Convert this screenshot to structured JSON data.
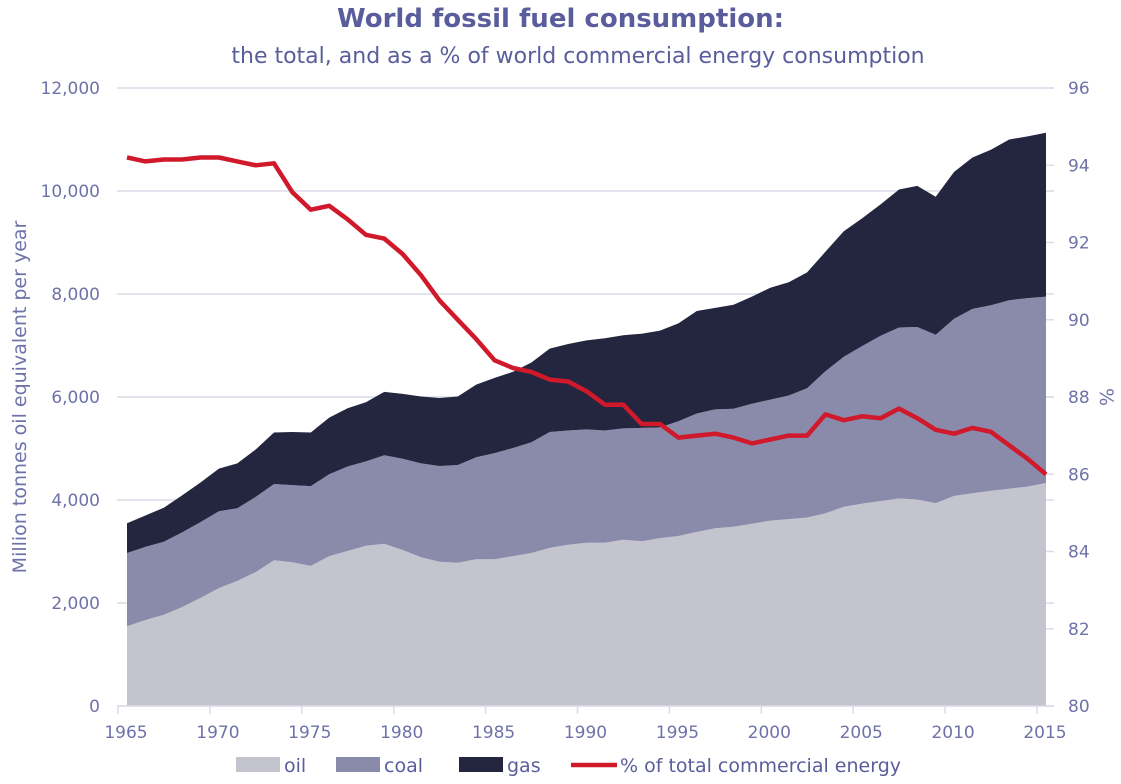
{
  "chart_data": {
    "type": "area",
    "stacked": true,
    "title": "World fossil fuel consumption:",
    "subtitle": "the total, and as a % of world commercial energy consumption",
    "xlabel": "",
    "ylabel": "Million tonnes oil equivalent per year",
    "y2label": "%",
    "ylim": [
      0,
      12000
    ],
    "y2lim": [
      80,
      96
    ],
    "x_ticks": [
      "1965",
      "1970",
      "1975",
      "1980",
      "1985",
      "1990",
      "1995",
      "2000",
      "2005",
      "2010",
      "2015"
    ],
    "y_ticks": [
      "0",
      "2,000",
      "4,000",
      "6,000",
      "8,000",
      "10,000",
      "12,000"
    ],
    "y2_ticks": [
      "80",
      "82",
      "84",
      "86",
      "88",
      "90",
      "92",
      "94",
      "96"
    ],
    "grid": true,
    "legend_position": "bottom",
    "x": [
      1965,
      1966,
      1967,
      1968,
      1969,
      1970,
      1971,
      1972,
      1973,
      1974,
      1975,
      1976,
      1977,
      1978,
      1979,
      1980,
      1981,
      1982,
      1983,
      1984,
      1985,
      1986,
      1987,
      1988,
      1989,
      1990,
      1991,
      1992,
      1993,
      1994,
      1995,
      1996,
      1997,
      1998,
      1999,
      2000,
      2001,
      2002,
      2003,
      2004,
      2005,
      2006,
      2007,
      2008,
      2009,
      2010,
      2011,
      2012,
      2013,
      2014,
      2015
    ],
    "series": [
      {
        "name": "oil",
        "kind": "area",
        "axis": "left",
        "color": "#c4c4cf",
        "values": [
          1550,
          1670,
          1770,
          1920,
          2100,
          2290,
          2430,
          2600,
          2830,
          2790,
          2720,
          2910,
          3010,
          3110,
          3150,
          3030,
          2890,
          2800,
          2780,
          2850,
          2850,
          2910,
          2970,
          3070,
          3130,
          3170,
          3170,
          3230,
          3200,
          3260,
          3300,
          3380,
          3450,
          3480,
          3540,
          3600,
          3630,
          3660,
          3740,
          3870,
          3930,
          3980,
          4030,
          4010,
          3940,
          4080,
          4130,
          4180,
          4220,
          4260,
          4330
        ]
      },
      {
        "name": "coal",
        "kind": "area",
        "axis": "left",
        "color": "#8a8aab",
        "values": [
          1420,
          1420,
          1420,
          1450,
          1470,
          1490,
          1410,
          1460,
          1480,
          1500,
          1550,
          1590,
          1640,
          1640,
          1720,
          1770,
          1820,
          1860,
          1900,
          1980,
          2060,
          2100,
          2150,
          2250,
          2220,
          2200,
          2180,
          2160,
          2200,
          2150,
          2230,
          2300,
          2310,
          2290,
          2330,
          2350,
          2400,
          2510,
          2760,
          2910,
          3060,
          3210,
          3320,
          3350,
          3270,
          3440,
          3580,
          3600,
          3660,
          3660,
          3620
        ]
      },
      {
        "name": "gas",
        "kind": "area",
        "axis": "left",
        "color": "#24253f",
        "values": [
          580,
          610,
          660,
          720,
          770,
          830,
          870,
          920,
          1000,
          1030,
          1040,
          1100,
          1130,
          1150,
          1230,
          1260,
          1300,
          1320,
          1330,
          1410,
          1460,
          1480,
          1550,
          1620,
          1680,
          1730,
          1790,
          1810,
          1830,
          1880,
          1900,
          1990,
          1970,
          2020,
          2080,
          2170,
          2200,
          2250,
          2320,
          2440,
          2480,
          2550,
          2680,
          2740,
          2680,
          2850,
          2940,
          3020,
          3120,
          3140,
          3180
        ]
      },
      {
        "name": "% of total commercial energy",
        "kind": "line",
        "axis": "right",
        "color": "#d0192a",
        "values": [
          94.2,
          94.1,
          94.15,
          94.15,
          94.2,
          94.2,
          94.1,
          94.0,
          94.05,
          93.3,
          92.85,
          92.95,
          92.6,
          92.2,
          92.1,
          91.7,
          91.15,
          90.5,
          90.0,
          89.5,
          88.95,
          88.75,
          88.65,
          88.45,
          88.4,
          88.15,
          87.8,
          87.8,
          87.3,
          87.3,
          86.95,
          87.0,
          87.05,
          86.95,
          86.8,
          86.9,
          87.0,
          87.0,
          87.55,
          87.4,
          87.5,
          87.45,
          87.7,
          87.45,
          87.15,
          87.05,
          87.2,
          87.1,
          86.75,
          86.4,
          86.0
        ]
      }
    ]
  },
  "legend": [
    {
      "label": "oil",
      "color": "#c4c4cf",
      "kind": "swatch"
    },
    {
      "label": "coal",
      "color": "#8a8aab",
      "kind": "swatch"
    },
    {
      "label": "gas",
      "color": "#24253f",
      "kind": "swatch"
    },
    {
      "label": "% of total commercial energy",
      "color": "#d0192a",
      "kind": "line"
    }
  ]
}
